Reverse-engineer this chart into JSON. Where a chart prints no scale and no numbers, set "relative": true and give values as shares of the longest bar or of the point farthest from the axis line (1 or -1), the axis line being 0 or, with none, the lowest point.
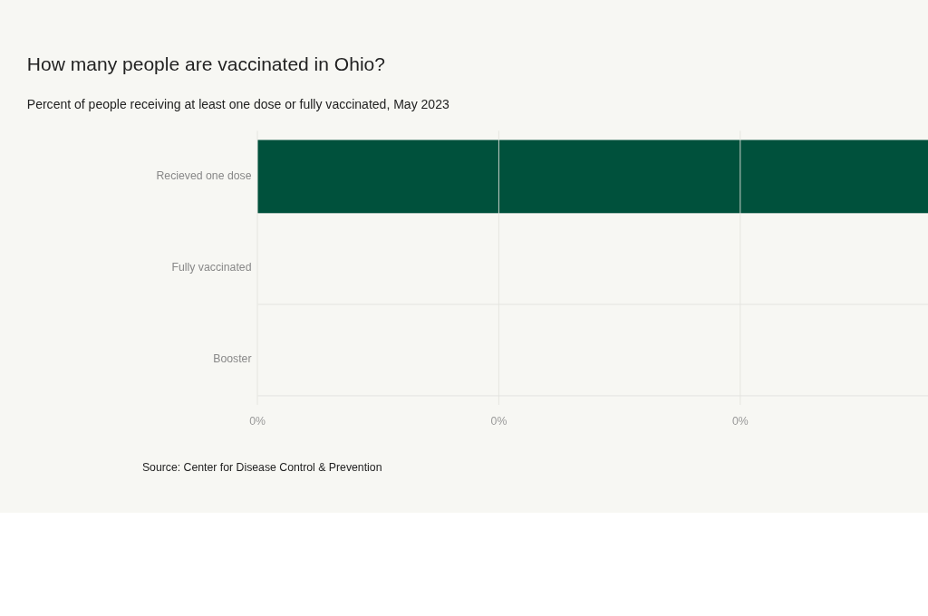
{
  "chart_data": {
    "type": "bar",
    "orientation": "horizontal",
    "relative": true,
    "title": "How many people are vaccinated in Ohio?",
    "subtitle": "Percent of people receiving at least one dose or fully vaccinated, May 2023",
    "categories": [
      "Recieved one dose",
      "Fully vaccinated",
      "Booster"
    ],
    "values": [
      1,
      null,
      0
    ],
    "color": "#00513c",
    "grid": true,
    "annotations": [
      "0%",
      "0%",
      "0%",
      "Source: Center for Disease Control & Prevention"
    ]
  }
}
